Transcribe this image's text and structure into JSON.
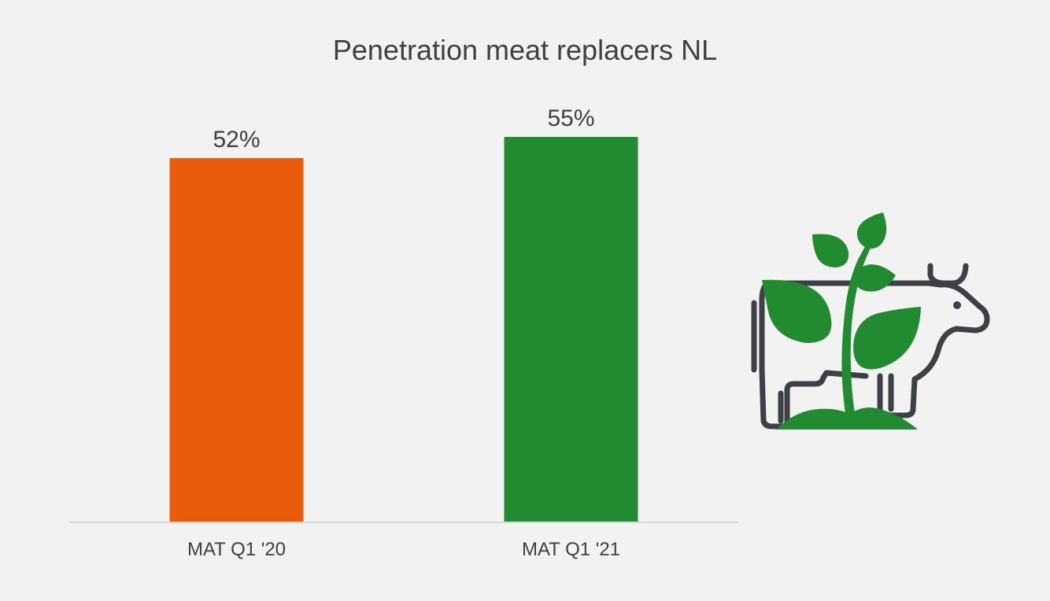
{
  "chart_data": {
    "type": "bar",
    "title": "Penetration meat replacers NL",
    "xlabel": "",
    "ylabel": "",
    "categories": [
      "MAT Q1 '20",
      "MAT Q1 '21"
    ],
    "values": [
      52,
      55
    ],
    "data_labels": [
      "52%",
      "55%"
    ],
    "bar_colors": [
      "#e95c0c",
      "#228a30"
    ],
    "ylim": [
      0,
      65
    ],
    "grid": false,
    "legend": "none"
  },
  "decoration": {
    "icon": "cow-with-plant-icon",
    "outline_color": "#3d4045",
    "plant_color": "#228a30"
  }
}
